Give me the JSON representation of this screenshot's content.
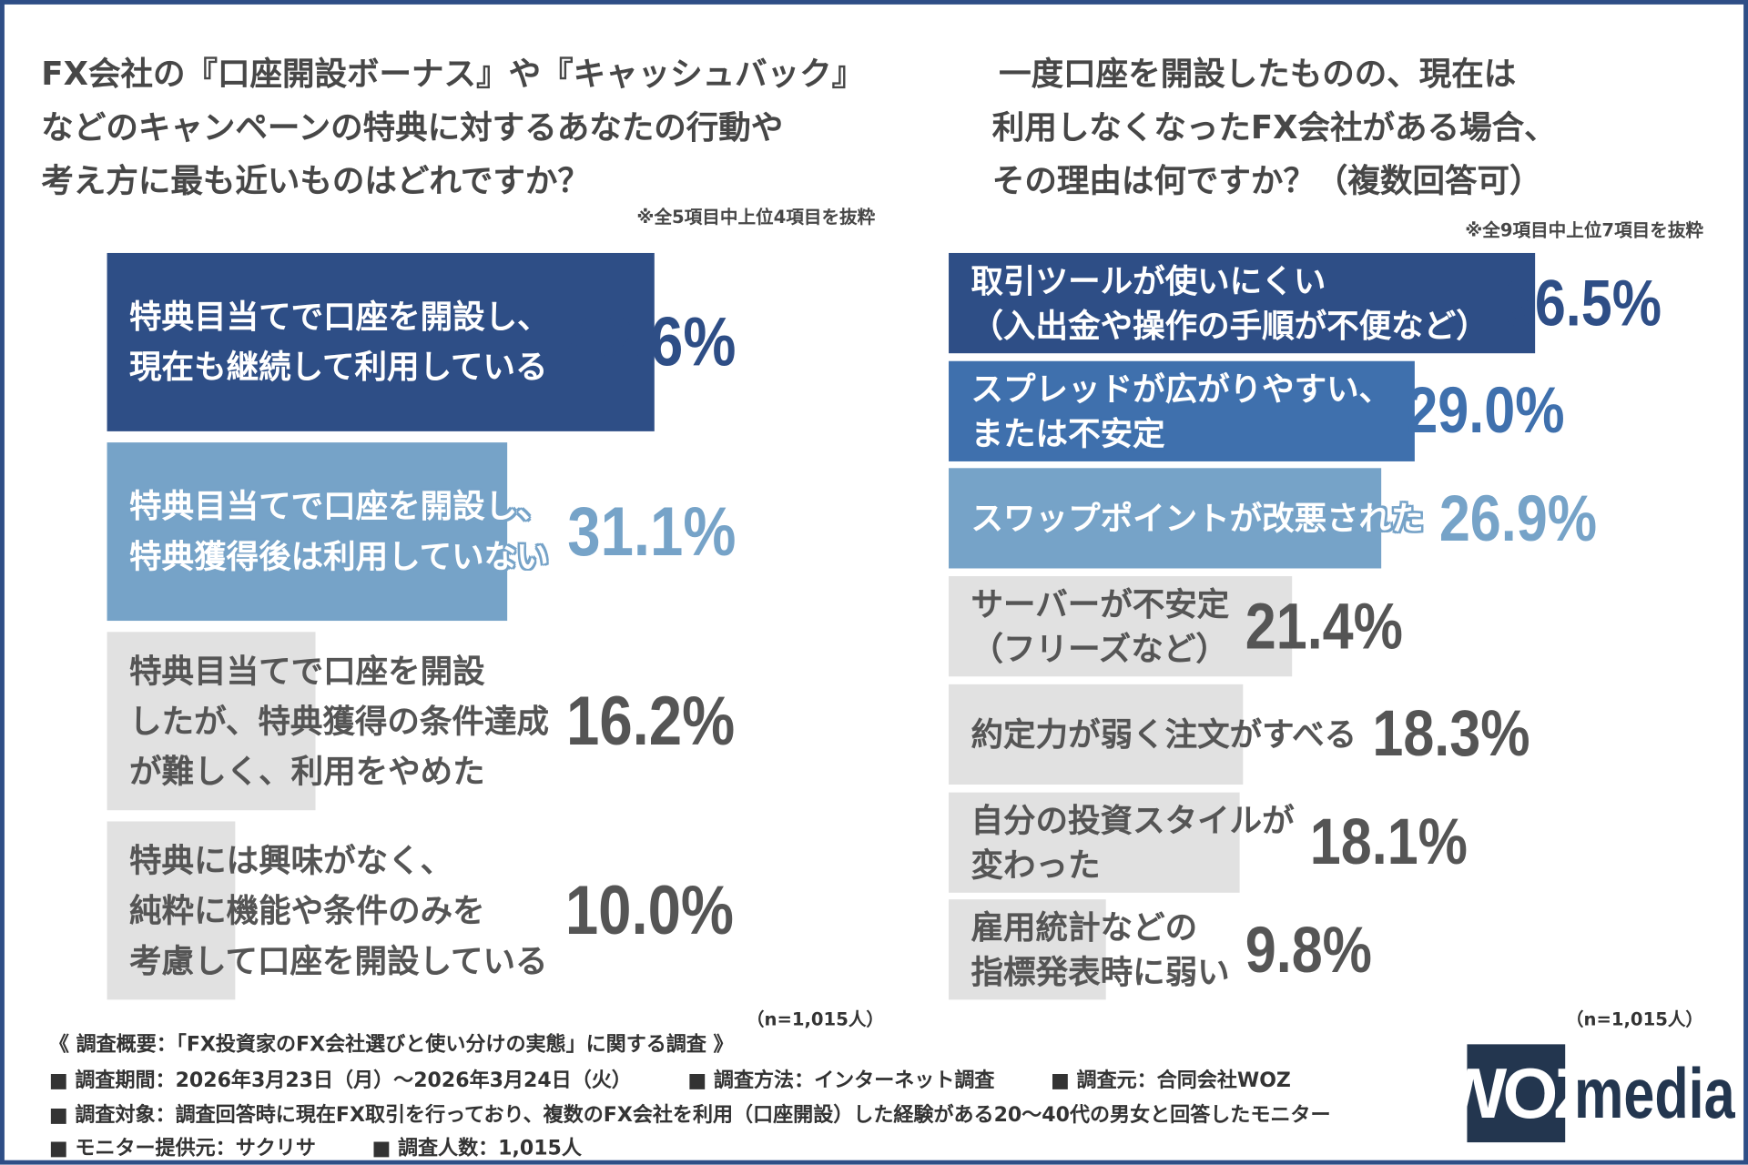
{
  "colors": {
    "dark": "#2e4e86",
    "mid": "#3f70ad",
    "light": "#76a3c8",
    "grey": "#e1e1e1",
    "grey_text": "#555555"
  },
  "chart_data": [
    {
      "type": "bar",
      "orientation": "horizontal",
      "title": [
        "FX会社の『口座開設ボーナス』や『キャッシュバック』",
        "などのキャンペーンの特典に対するあなたの行動や",
        "考え方に最も近いものはどれですか？"
      ],
      "note": "※全5項目中上位4項目を抜粋",
      "sample": "（n=1,015人）",
      "unit": "%",
      "categories": [
        [
          "特典目当てで口座を開設し、",
          "現在も継続して利用している"
        ],
        [
          "特典目当てで口座を開設し、",
          "特典獲得後は利用していない"
        ],
        [
          "特典目当てで口座を開設",
          "したが、特典獲得の条件達成",
          "が難しく、利用をやめた"
        ],
        [
          "特典には興味がなく、",
          "純粋に機能や条件のみを",
          "考慮して口座を開設している"
        ]
      ],
      "values": [
        42.6,
        31.1,
        16.2,
        10.0
      ],
      "value_labels": [
        "42.6%",
        "31.1%",
        "16.2%",
        "10.0%"
      ],
      "bar_colors": [
        "dark",
        "light",
        "grey",
        "grey"
      ]
    },
    {
      "type": "bar",
      "orientation": "horizontal",
      "title": [
        "一度口座を開設したものの、現在は",
        "利用しなくなったFX会社がある場合、",
        "その理由は何ですか？（複数回答可）"
      ],
      "note": "※全9項目中上位7項目を抜粋",
      "sample": "（n=1,015人）",
      "unit": "%",
      "categories": [
        [
          "取引ツールが使いにくい",
          "（入出金や操作の手順が不便など）"
        ],
        [
          "スプレッドが広がりやすい、",
          "または不安定"
        ],
        [
          "スワップポイントが改悪された"
        ],
        [
          "サーバーが不安定",
          "（フリーズなど）"
        ],
        [
          "約定力が弱く注文がすべる"
        ],
        [
          "自分の投資スタイルが",
          "変わった"
        ],
        [
          "雇用統計などの",
          "指標発表時に弱い"
        ]
      ],
      "values": [
        36.5,
        29.0,
        26.9,
        21.4,
        18.3,
        18.1,
        9.8
      ],
      "value_labels": [
        "36.5%",
        "29.0%",
        "26.9%",
        "21.4%",
        "18.3%",
        "18.1%",
        "9.8%"
      ],
      "bar_colors": [
        "dark",
        "mid",
        "light",
        "grey",
        "grey",
        "grey",
        "grey"
      ]
    }
  ],
  "footer": {
    "heading": "《 調査概要：「FX投資家のFX会社選びと使い分けの実態」に関する調査 》",
    "period": "■ 調査期間：2026年3月23日（月）～2026年3月24日（火）",
    "method": "■ 調査方法：インターネット調査",
    "source": "■ 調査元：合同会社WOZ",
    "target": "■ 調査対象：調査回答時に現在FX取引を行っており、複数のFX会社を利用（口座開設）した経験がある20～40代の男女と回答したモニター",
    "provider": "■ モニター提供元：サクリサ",
    "count": "■ 調査人数：1,015人"
  },
  "logo": {
    "box": "WOZ",
    "text": "media"
  }
}
